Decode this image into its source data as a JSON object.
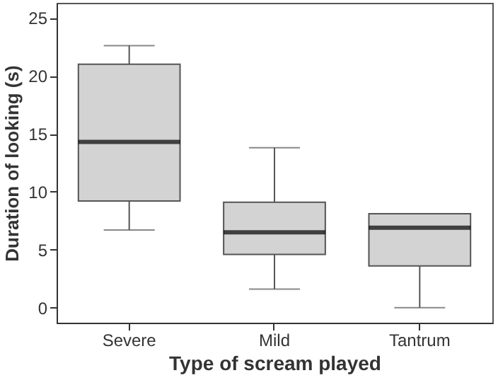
{
  "chart_data": {
    "type": "box",
    "xlabel": "Type of scream played",
    "ylabel": "Duration of looking (s)",
    "categories": [
      "Severe",
      "Mild",
      "Tantrum"
    ],
    "boxes": [
      {
        "low": 6.7,
        "q1": 9.2,
        "median": 14.3,
        "q3": 21.0,
        "high": 22.6
      },
      {
        "low": 1.6,
        "q1": 4.6,
        "median": 6.5,
        "q3": 9.1,
        "high": 13.8
      },
      {
        "low": 0,
        "q1": 3.6,
        "median": 6.9,
        "q3": 8.1,
        "high": 8.1
      }
    ],
    "color": "#d3d3d3",
    "ylim": [
      -1.3,
      26.3
    ],
    "yticks": [
      0,
      5,
      10,
      15,
      20,
      25
    ],
    "grid": false
  }
}
